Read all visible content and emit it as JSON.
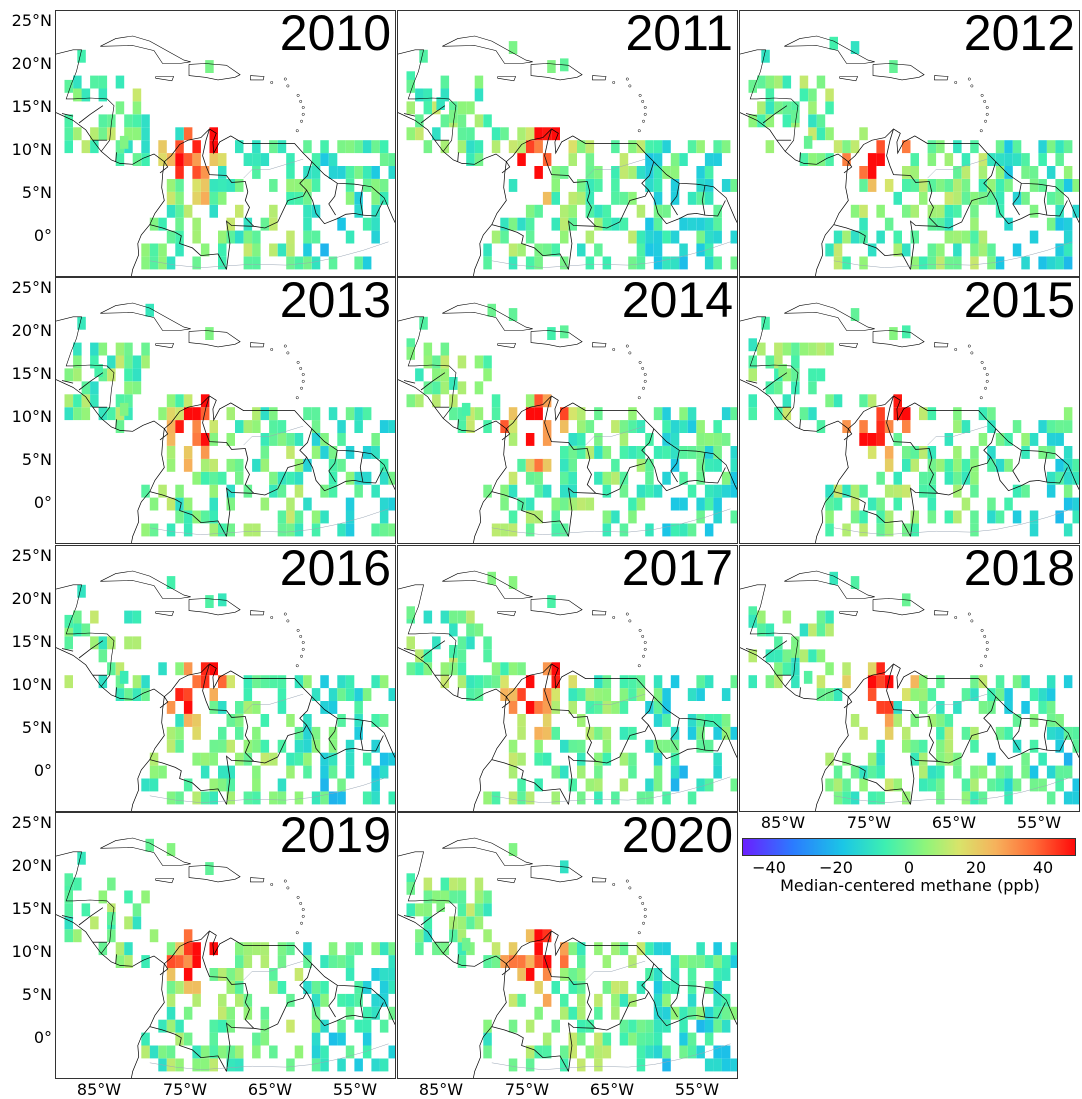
{
  "figure": {
    "years": [
      "2010",
      "2011",
      "2012",
      "2013",
      "2014",
      "2015",
      "2016",
      "2017",
      "2018",
      "2019",
      "2020"
    ],
    "lat_ticks": [
      "25°N",
      "20°N",
      "15°N",
      "10°N",
      "5°N",
      "0°"
    ],
    "lon_ticks": [
      "85°W",
      "75°W",
      "65°W",
      "55°W"
    ]
  },
  "colorbar": {
    "ticks": [
      "−40",
      "−20",
      "0",
      "20",
      "40"
    ],
    "label": "Median-centered methane (ppb)",
    "range": [
      -50,
      50
    ],
    "colormap": "rainbow"
  },
  "colors": {
    "low": "#6a1fff",
    "mid": "#3ef0b0",
    "high": "#ff0a0a",
    "coastline": "#000000"
  },
  "map_extent": {
    "lon": [
      -90,
      -50
    ],
    "lat": [
      -5,
      26
    ]
  }
}
